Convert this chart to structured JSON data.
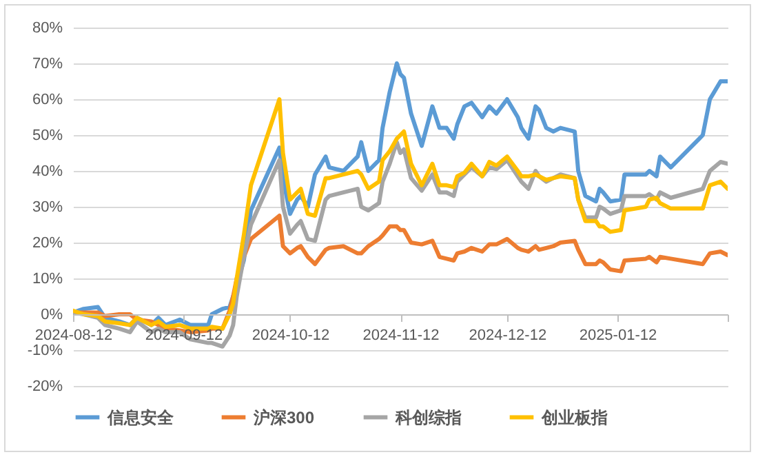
{
  "chart_data": {
    "type": "line",
    "x": [
      "2024-08-12",
      "2024-08-15",
      "2024-08-19",
      "2024-08-21",
      "2024-08-25",
      "2024-08-28",
      "2024-08-30",
      "2024-09-03",
      "2024-09-05",
      "2024-09-07",
      "2024-09-11",
      "2024-09-14",
      "2024-09-19",
      "2024-09-20",
      "2024-09-23",
      "2024-09-25",
      "2024-09-26",
      "2024-09-27",
      "2024-09-29",
      "2024-10-01",
      "2024-10-09",
      "2024-10-10",
      "2024-10-12",
      "2024-10-14",
      "2024-10-15",
      "2024-10-17",
      "2024-10-19",
      "2024-10-22",
      "2024-10-23",
      "2024-10-27",
      "2024-10-31",
      "2024-11-01",
      "2024-11-03",
      "2024-11-06",
      "2024-11-07",
      "2024-11-09",
      "2024-11-11",
      "2024-11-12",
      "2024-11-13",
      "2024-11-15",
      "2024-11-18",
      "2024-11-21",
      "2024-11-23",
      "2024-11-25",
      "2024-11-27",
      "2024-11-28",
      "2024-11-30",
      "2024-12-02",
      "2024-12-05",
      "2024-12-07",
      "2024-12-09",
      "2024-12-12",
      "2024-12-15",
      "2024-12-16",
      "2024-12-18",
      "2024-12-20",
      "2024-12-21",
      "2024-12-23",
      "2024-12-25",
      "2024-12-27",
      "2024-12-31",
      "2025-01-01",
      "2025-01-03",
      "2025-01-06",
      "2025-01-07",
      "2025-01-08",
      "2025-01-10",
      "2025-01-13",
      "2025-01-14",
      "2025-01-20",
      "2025-01-21",
      "2025-01-23",
      "2025-01-24",
      "2025-01-27",
      "2025-02-05",
      "2025-02-07",
      "2025-02-10",
      "2025-02-12"
    ],
    "series": [
      {
        "name": "信息安全",
        "color": "#5b9bd5",
        "values": [
          0.5,
          1.5,
          2,
          -1,
          -2,
          -3,
          -1,
          -3,
          -1,
          -3,
          -1.5,
          -3,
          -3,
          0,
          1.5,
          2,
          5,
          8,
          15,
          29,
          46.5,
          38,
          28,
          32,
          33,
          30,
          39,
          44,
          41,
          40,
          44,
          48,
          40,
          43,
          52,
          62,
          70,
          67,
          66,
          56,
          47,
          58,
          52,
          52,
          49,
          53,
          58,
          59,
          55,
          58,
          56,
          60,
          55,
          52,
          49,
          58,
          57,
          52,
          51,
          52,
          51,
          40,
          33,
          31.5,
          35,
          34,
          31.5,
          32,
          39,
          39,
          40,
          38.5,
          44,
          41,
          50,
          60,
          65,
          65
        ]
      },
      {
        "name": "沪深300",
        "color": "#ed7d31",
        "values": [
          0.5,
          0.5,
          0.5,
          -0.5,
          0,
          0,
          -1.5,
          -2,
          -3,
          -4,
          -4.5,
          -5,
          -4.5,
          -4,
          -4,
          1,
          5,
          10,
          16,
          21,
          27.5,
          19,
          17,
          18.5,
          19,
          16,
          14,
          18,
          18.5,
          19,
          17,
          17,
          19,
          21,
          22,
          24.5,
          24.5,
          23.5,
          23.5,
          20,
          19.5,
          20.5,
          16,
          15.5,
          15,
          17,
          17.5,
          18.5,
          17.5,
          19.5,
          19.5,
          21,
          18.5,
          18,
          17.5,
          19,
          18,
          18.5,
          19,
          20,
          20.5,
          18,
          14,
          14,
          15,
          14.5,
          12.5,
          12,
          15,
          15.5,
          16,
          14.5,
          16,
          15.5,
          14,
          17,
          17.5,
          16.5
        ]
      },
      {
        "name": "科创综指",
        "color": "#a5a5a5",
        "values": [
          0.5,
          0,
          -1,
          -3,
          -4,
          -5,
          -2,
          -5,
          -4,
          -5,
          -5,
          -7,
          -8,
          -8,
          -9,
          -6,
          -3,
          5,
          16,
          25,
          43,
          30,
          22.5,
          25,
          26,
          21,
          20.5,
          32,
          33,
          34,
          35,
          30,
          29,
          31,
          37,
          42,
          48,
          45,
          46,
          38,
          34.5,
          39,
          34,
          34,
          33,
          37,
          39,
          41,
          38.5,
          41,
          40.5,
          43,
          38.5,
          37,
          35,
          40,
          38.5,
          37,
          38,
          39,
          38,
          32,
          27,
          27,
          30,
          29.5,
          28,
          29,
          33,
          33,
          33.5,
          32,
          34,
          32.5,
          35,
          40,
          42.5,
          42
        ]
      },
      {
        "name": "创业板指",
        "color": "#ffc000",
        "values": [
          1,
          0,
          -0.5,
          -2,
          -2.5,
          -3,
          -1,
          -3,
          -2,
          -3.5,
          -3,
          -4,
          -4,
          -3.5,
          -4,
          0,
          3,
          10,
          22,
          36,
          60,
          45,
          32,
          34,
          35,
          28,
          27.5,
          38,
          38,
          39,
          40,
          39,
          35,
          37,
          43,
          45.5,
          49,
          50,
          51,
          42,
          36,
          42,
          36,
          36,
          35.5,
          38.5,
          39.5,
          42,
          38.5,
          42.5,
          41.5,
          44,
          40,
          38.5,
          38.5,
          39,
          38.5,
          37.5,
          38,
          38.5,
          38,
          32,
          26,
          26,
          24.5,
          24.5,
          23,
          23.5,
          29,
          30,
          32,
          32.5,
          31,
          29.5,
          29.5,
          36,
          37,
          35
        ]
      }
    ],
    "xlim": [
      "2024-08-12",
      "2025-02-12"
    ],
    "xticks": [
      "2024-08-12",
      "2024-09-12",
      "2024-10-12",
      "2024-11-12",
      "2024-12-12",
      "2025-01-12",
      {
        "value": "2025-02-12",
        "label": null
      }
    ],
    "ylim": [
      -20,
      80
    ],
    "yticks": [
      {
        "value": -20,
        "label": "-20%"
      },
      {
        "value": -10,
        "label": "-10%"
      },
      {
        "value": 0,
        "label": "0%"
      },
      {
        "value": 10,
        "label": "10%"
      },
      {
        "value": 20,
        "label": "20%"
      },
      {
        "value": 30,
        "label": "30%"
      },
      {
        "value": 40,
        "label": "40%"
      },
      {
        "value": 50,
        "label": "50%"
      },
      {
        "value": 60,
        "label": "60%"
      },
      {
        "value": 70,
        "label": "70%"
      },
      {
        "value": 80,
        "label": "80%"
      }
    ],
    "grid": "y",
    "legend": "bottom"
  }
}
